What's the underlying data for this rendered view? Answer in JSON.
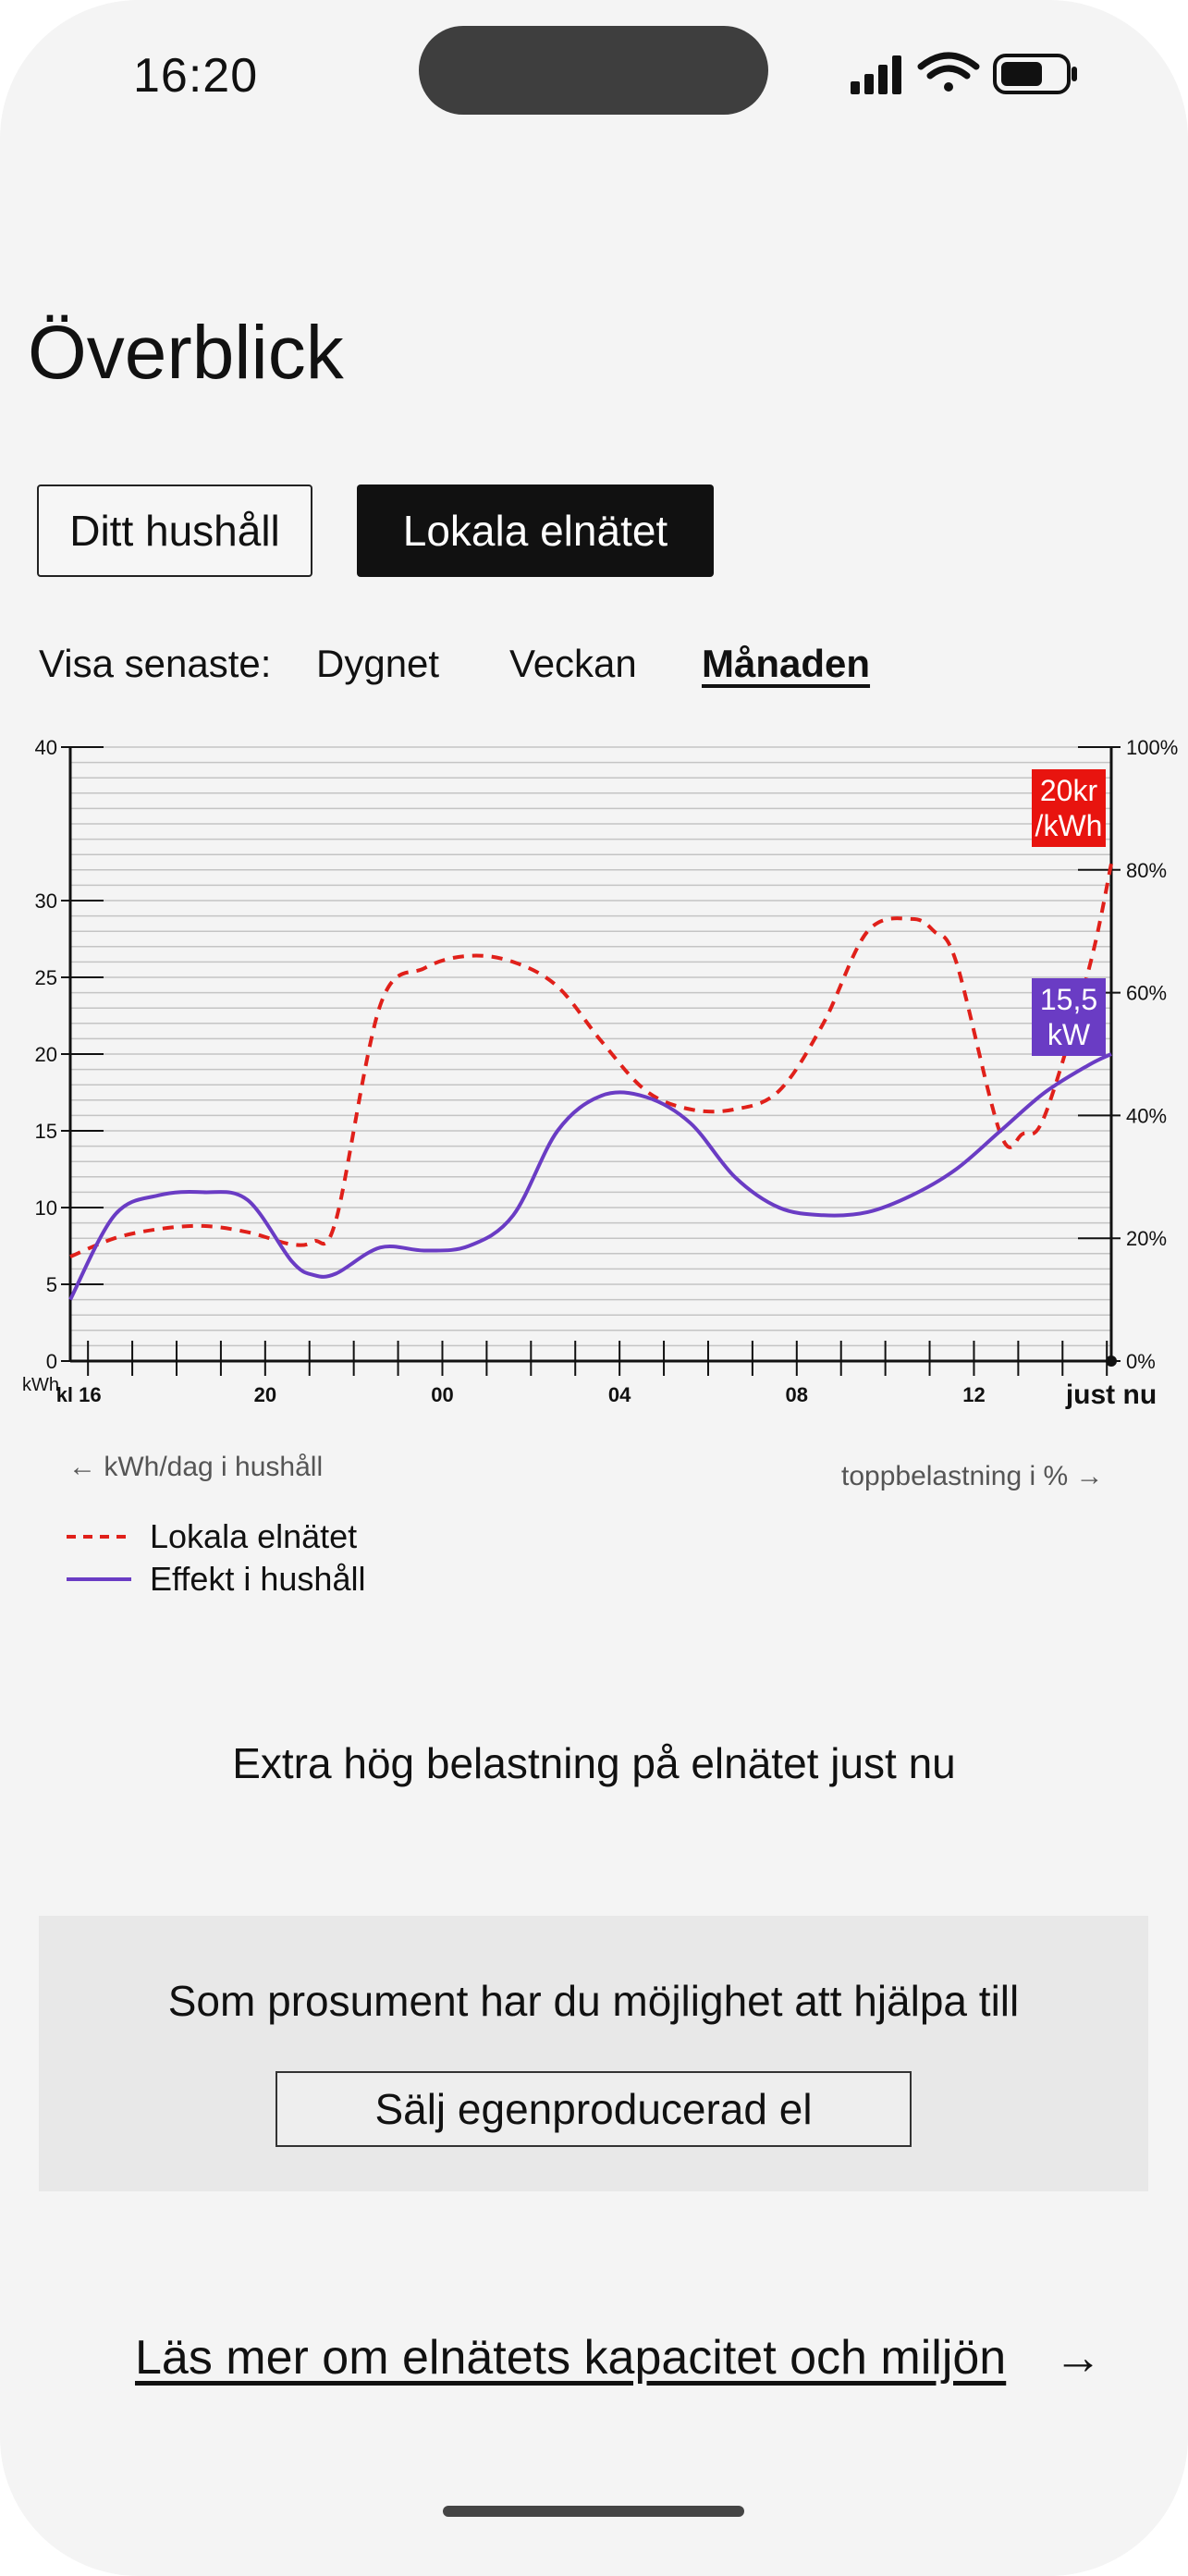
{
  "status": {
    "time": "16:20"
  },
  "page": {
    "title": "Överblick"
  },
  "segments": {
    "household": "Ditt hushåll",
    "local_grid": "Lokala elnätet",
    "selected": "local_grid"
  },
  "range": {
    "label": "Visa senaste:",
    "options": [
      "Dygnet",
      "Veckan",
      "Månaden"
    ],
    "selected": "Månaden"
  },
  "chart_data": {
    "type": "line",
    "left_axis": {
      "unit": "kWh",
      "ticks": [
        0,
        5,
        10,
        15,
        20,
        25,
        30,
        40
      ],
      "range": [
        0,
        40
      ]
    },
    "right_axis": {
      "ticks": [
        "0%",
        "20%",
        "40%",
        "60%",
        "80%",
        "100%"
      ],
      "range": [
        0,
        100
      ]
    },
    "x_axis": {
      "ticks": [
        "kl 16",
        "20",
        "00",
        "04",
        "08",
        "12"
      ],
      "end_label": "just nu"
    },
    "series": [
      {
        "name": "Lokala elnätet",
        "axis": "right",
        "style": "dashed",
        "color": "#e0201a",
        "x": [
          0,
          1,
          2,
          3,
          4,
          5,
          5.5,
          6,
          7,
          8,
          9,
          10,
          11,
          12,
          13,
          14,
          15,
          16,
          17,
          18,
          19,
          19.5,
          20,
          21,
          21.5,
          22,
          23,
          23.5
        ],
        "y": [
          17,
          20,
          21.5,
          22,
          21,
          19,
          19.5,
          23,
          58,
          64,
          66,
          65,
          61,
          52,
          44,
          41,
          41,
          44,
          55,
          70,
          72,
          70,
          65,
          37,
          37,
          40,
          64,
          81
        ]
      },
      {
        "name": "Effekt i hushåll",
        "axis": "left",
        "style": "solid",
        "color": "#6a3cc4",
        "x": [
          0,
          1,
          2,
          3,
          4,
          5,
          5.5,
          6,
          7,
          8,
          9,
          10,
          11,
          12,
          13,
          14,
          15,
          16,
          17,
          18,
          19,
          20,
          21,
          22,
          23,
          23.5
        ],
        "y": [
          4,
          9.5,
          10.8,
          11,
          10.5,
          6.5,
          5.6,
          5.7,
          7.4,
          7.2,
          7.5,
          9.5,
          15,
          17.3,
          17.2,
          15.5,
          12,
          10,
          9.5,
          9.7,
          10.8,
          12.5,
          15,
          17.5,
          19.3,
          20
        ]
      }
    ],
    "badges": [
      {
        "series": "Lokala elnätet",
        "text_line1": "20kr",
        "text_line2": "/kWh",
        "color": "#e8140f"
      },
      {
        "series": "Effekt i hushåll",
        "text_line1": "15,5",
        "text_line2": "kW",
        "color": "#6a3cc4"
      }
    ],
    "legend": [
      {
        "name": "Lokala elnätet",
        "style": "dashed",
        "color": "#e0201a"
      },
      {
        "name": "Effekt i hushåll",
        "style": "solid",
        "color": "#6a3cc4"
      }
    ],
    "axis_notes": {
      "left": "← kWh/dag i hushåll",
      "right": "toppbelastning i % →"
    },
    "grid": true
  },
  "alert": "Extra hög belastning på elnätet just nu",
  "prosument": {
    "text": "Som prosument har du möjlighet att hjälpa till",
    "button": "Sälj egenproducerad el"
  },
  "footer": {
    "link": "Läs mer om elnätets kapacitet och miljön",
    "arrow": "→"
  },
  "icons": {
    "signal": "signal-icon",
    "wifi": "wifi-icon",
    "battery": "battery-icon",
    "arrow": "arrow-right-icon"
  }
}
